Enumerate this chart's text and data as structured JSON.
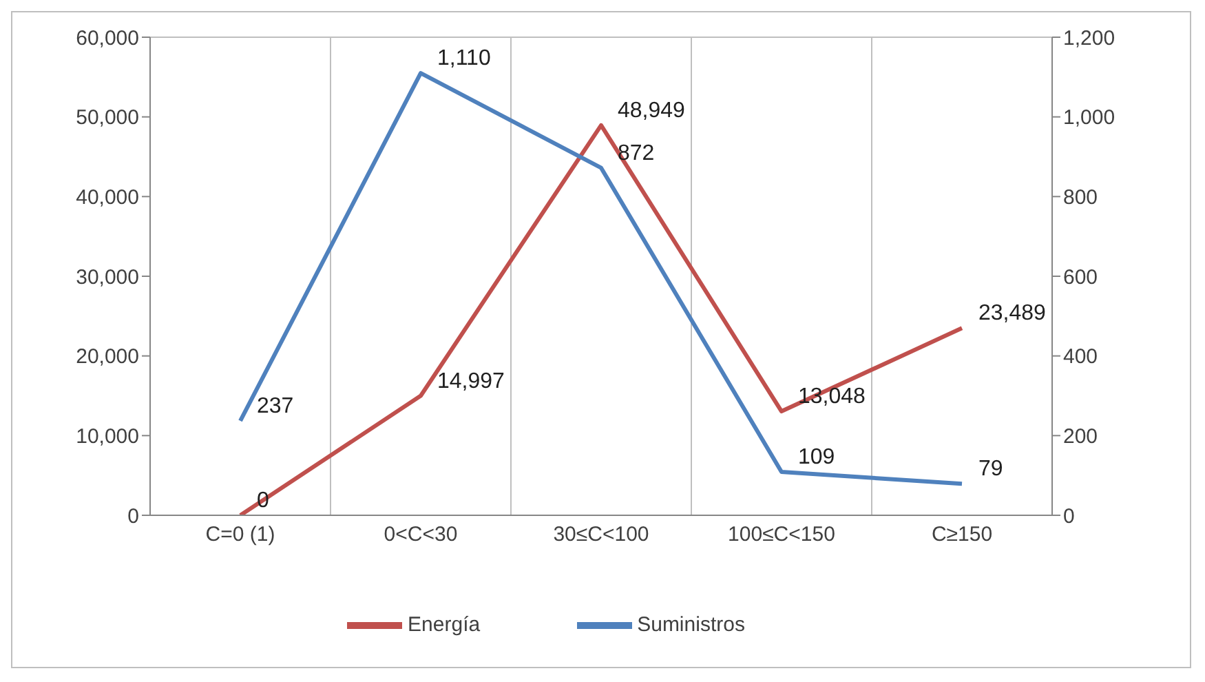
{
  "chart_data": {
    "type": "line",
    "categories": [
      "C=0 (1)",
      "0<C<30",
      "30≤C<100",
      "100≤C<150",
      "C≥150"
    ],
    "series": [
      {
        "name": "Energía",
        "color": "#c0504d",
        "values": [
          0,
          14997,
          48949,
          13048,
          23489
        ],
        "value_labels": [
          "0",
          "14,997",
          "48,949",
          "13,048",
          "23,489"
        ]
      },
      {
        "name": "Suministros",
        "color": "#4f81bd",
        "axis": "y2",
        "values": [
          237,
          1110,
          872,
          109,
          79
        ],
        "value_labels": [
          "237",
          "1,110",
          "872",
          "109",
          "79"
        ]
      }
    ],
    "ylim": [
      0,
      60000
    ],
    "yticks": [
      {
        "value": 0,
        "label": "0"
      },
      {
        "value": 10000,
        "label": "10,000"
      },
      {
        "value": 20000,
        "label": "20,000"
      },
      {
        "value": 30000,
        "label": "30,000"
      },
      {
        "value": 40000,
        "label": "40,000"
      },
      {
        "value": 50000,
        "label": "50,000"
      },
      {
        "value": 60000,
        "label": "60,000"
      }
    ],
    "y2lim": [
      0,
      1200
    ],
    "y2ticks": [
      {
        "value": 0,
        "label": "0"
      },
      {
        "value": 200,
        "label": "200"
      },
      {
        "value": 400,
        "label": "400"
      },
      {
        "value": 600,
        "label": "600"
      },
      {
        "value": 800,
        "label": "800"
      },
      {
        "value": 1000,
        "label": "1,000"
      },
      {
        "value": 1200,
        "label": "1,200"
      }
    ],
    "grid": true,
    "legend": "bottom",
    "marker": "none",
    "line_style": "solid"
  }
}
